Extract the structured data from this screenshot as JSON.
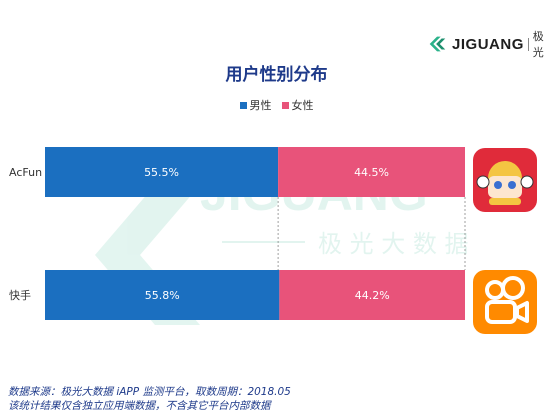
{
  "brand": {
    "name": "JIGUANG",
    "name_cn": "极光",
    "watermark_en": "JIGUANG",
    "watermark_cn": "极 光 大 数 据"
  },
  "chart_data": {
    "type": "bar",
    "stacked": true,
    "orientation": "horizontal",
    "title": "用户性别分布",
    "categories": [
      "AcFun",
      "快手"
    ],
    "series": [
      {
        "name": "男性",
        "values": [
          55.5,
          55.8
        ],
        "labels": [
          "55.5%",
          "55.8%"
        ],
        "color": "#1b6fc0"
      },
      {
        "name": "女性",
        "values": [
          44.5,
          44.2
        ],
        "labels": [
          "44.5%",
          "44.2%"
        ],
        "color": "#e8537a"
      }
    ],
    "xlim": [
      0,
      100
    ],
    "legend_position": "top-center",
    "grid": false
  },
  "icons": [
    "acfun-app-icon",
    "kuaishou-app-icon"
  ],
  "footer": {
    "source_line": "数据来源：极光大数据 iAPP 监测平台，取数周期：2018.05",
    "note_line": "该统计结果仅含独立应用端数据，不含其它平台内部数据"
  }
}
